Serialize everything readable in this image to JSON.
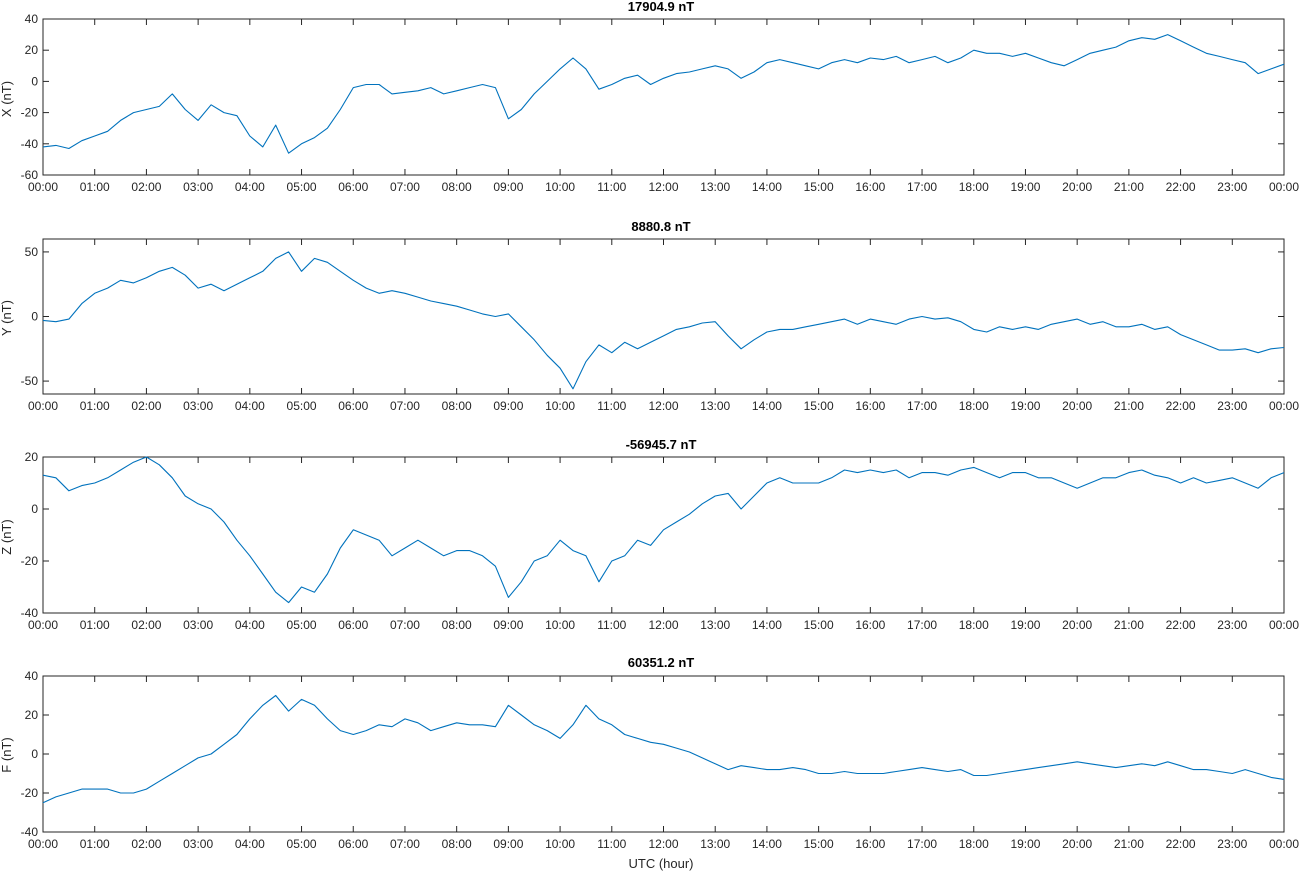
{
  "x_axis": {
    "ticks": [
      "00:00",
      "01:00",
      "02:00",
      "03:00",
      "04:00",
      "05:00",
      "06:00",
      "07:00",
      "08:00",
      "09:00",
      "10:00",
      "11:00",
      "12:00",
      "13:00",
      "14:00",
      "15:00",
      "16:00",
      "17:00",
      "18:00",
      "19:00",
      "20:00",
      "21:00",
      "22:00",
      "23:00",
      "00:00"
    ],
    "xlabel": "UTC (hour)"
  },
  "colors": {
    "series": "#0072BD",
    "axis": "#262626"
  },
  "chart_data": [
    {
      "type": "line",
      "title": "17904.9 nT",
      "ylabel": "X (nT)",
      "xlim": [
        0,
        24
      ],
      "ylim": [
        -60,
        40
      ],
      "yticks": [
        -60,
        -40,
        -20,
        0,
        20,
        40
      ],
      "grid": false,
      "x": [
        0,
        0.25,
        0.5,
        0.75,
        1,
        1.25,
        1.5,
        1.75,
        2,
        2.25,
        2.5,
        2.75,
        3,
        3.25,
        3.5,
        3.75,
        4,
        4.25,
        4.5,
        4.75,
        5,
        5.25,
        5.5,
        5.75,
        6,
        6.25,
        6.5,
        6.75,
        7,
        7.25,
        7.5,
        7.75,
        8,
        8.25,
        8.5,
        8.75,
        9,
        9.25,
        9.5,
        9.75,
        10,
        10.25,
        10.5,
        10.75,
        11,
        11.25,
        11.5,
        11.75,
        12,
        12.25,
        12.5,
        12.75,
        13,
        13.25,
        13.5,
        13.75,
        14,
        14.25,
        14.5,
        14.75,
        15,
        15.25,
        15.5,
        15.75,
        16,
        16.25,
        16.5,
        16.75,
        17,
        17.25,
        17.5,
        17.75,
        18,
        18.25,
        18.5,
        18.75,
        19,
        19.25,
        19.5,
        19.75,
        20,
        20.25,
        20.5,
        20.75,
        21,
        21.25,
        21.5,
        21.75,
        22,
        22.25,
        22.5,
        22.75,
        23,
        23.25,
        23.5,
        23.75,
        24
      ],
      "values": [
        -42,
        -41,
        -43,
        -38,
        -35,
        -32,
        -25,
        -20,
        -18,
        -16,
        -8,
        -18,
        -25,
        -15,
        -20,
        -22,
        -35,
        -42,
        -28,
        -46,
        -40,
        -36,
        -30,
        -18,
        -4,
        -2,
        -2,
        -8,
        -7,
        -6,
        -4,
        -8,
        -6,
        -4,
        -2,
        -4,
        -24,
        -18,
        -8,
        0,
        8,
        15,
        8,
        -5,
        -2,
        2,
        4,
        -2,
        2,
        5,
        6,
        8,
        10,
        8,
        2,
        6,
        12,
        14,
        12,
        10,
        8,
        12,
        14,
        12,
        15,
        14,
        16,
        12,
        14,
        16,
        12,
        15,
        20,
        18,
        18,
        16,
        18,
        15,
        12,
        10,
        14,
        18,
        20,
        22,
        26,
        28,
        27,
        30,
        26,
        22,
        18,
        16,
        14,
        12,
        5,
        8,
        11
      ]
    },
    {
      "type": "line",
      "title": "8880.8 nT",
      "ylabel": "Y (nT)",
      "xlim": [
        0,
        24
      ],
      "ylim": [
        -60,
        60
      ],
      "yticks": [
        -50,
        0,
        50
      ],
      "grid": false,
      "x": [
        0,
        0.25,
        0.5,
        0.75,
        1,
        1.25,
        1.5,
        1.75,
        2,
        2.25,
        2.5,
        2.75,
        3,
        3.25,
        3.5,
        3.75,
        4,
        4.25,
        4.5,
        4.75,
        5,
        5.25,
        5.5,
        5.75,
        6,
        6.25,
        6.5,
        6.75,
        7,
        7.25,
        7.5,
        7.75,
        8,
        8.25,
        8.5,
        8.75,
        9,
        9.25,
        9.5,
        9.75,
        10,
        10.25,
        10.5,
        10.75,
        11,
        11.25,
        11.5,
        11.75,
        12,
        12.25,
        12.5,
        12.75,
        13,
        13.25,
        13.5,
        13.75,
        14,
        14.25,
        14.5,
        14.75,
        15,
        15.25,
        15.5,
        15.75,
        16,
        16.25,
        16.5,
        16.75,
        17,
        17.25,
        17.5,
        17.75,
        18,
        18.25,
        18.5,
        18.75,
        19,
        19.25,
        19.5,
        19.75,
        20,
        20.25,
        20.5,
        20.75,
        21,
        21.25,
        21.5,
        21.75,
        22,
        22.25,
        22.5,
        22.75,
        23,
        23.25,
        23.5,
        23.75,
        24
      ],
      "values": [
        -3,
        -4,
        -2,
        10,
        18,
        22,
        28,
        26,
        30,
        35,
        38,
        32,
        22,
        25,
        20,
        25,
        30,
        35,
        45,
        50,
        35,
        45,
        42,
        35,
        28,
        22,
        18,
        20,
        18,
        15,
        12,
        10,
        8,
        5,
        2,
        0,
        2,
        -8,
        -18,
        -30,
        -40,
        -56,
        -35,
        -22,
        -28,
        -20,
        -25,
        -20,
        -15,
        -10,
        -8,
        -5,
        -4,
        -15,
        -25,
        -18,
        -12,
        -10,
        -10,
        -8,
        -6,
        -4,
        -2,
        -6,
        -2,
        -4,
        -6,
        -2,
        0,
        -2,
        -1,
        -4,
        -10,
        -12,
        -8,
        -10,
        -8,
        -10,
        -6,
        -4,
        -2,
        -6,
        -4,
        -8,
        -8,
        -6,
        -10,
        -8,
        -14,
        -18,
        -22,
        -26,
        -26,
        -25,
        -28,
        -25,
        -24
      ]
    },
    {
      "type": "line",
      "title": "-56945.7 nT",
      "ylabel": "Z (nT)",
      "xlim": [
        0,
        24
      ],
      "ylim": [
        -40,
        20
      ],
      "yticks": [
        -40,
        -20,
        0,
        20
      ],
      "grid": false,
      "x": [
        0,
        0.25,
        0.5,
        0.75,
        1,
        1.25,
        1.5,
        1.75,
        2,
        2.25,
        2.5,
        2.75,
        3,
        3.25,
        3.5,
        3.75,
        4,
        4.25,
        4.5,
        4.75,
        5,
        5.25,
        5.5,
        5.75,
        6,
        6.25,
        6.5,
        6.75,
        7,
        7.25,
        7.5,
        7.75,
        8,
        8.25,
        8.5,
        8.75,
        9,
        9.25,
        9.5,
        9.75,
        10,
        10.25,
        10.5,
        10.75,
        11,
        11.25,
        11.5,
        11.75,
        12,
        12.25,
        12.5,
        12.75,
        13,
        13.25,
        13.5,
        13.75,
        14,
        14.25,
        14.5,
        14.75,
        15,
        15.25,
        15.5,
        15.75,
        16,
        16.25,
        16.5,
        16.75,
        17,
        17.25,
        17.5,
        17.75,
        18,
        18.25,
        18.5,
        18.75,
        19,
        19.25,
        19.5,
        19.75,
        20,
        20.25,
        20.5,
        20.75,
        21,
        21.25,
        21.5,
        21.75,
        22,
        22.25,
        22.5,
        22.75,
        23,
        23.25,
        23.5,
        23.75,
        24
      ],
      "values": [
        13,
        12,
        7,
        9,
        10,
        12,
        15,
        18,
        20,
        17,
        12,
        5,
        2,
        0,
        -5,
        -12,
        -18,
        -25,
        -32,
        -36,
        -30,
        -32,
        -25,
        -15,
        -8,
        -10,
        -12,
        -18,
        -15,
        -12,
        -15,
        -18,
        -16,
        -16,
        -18,
        -22,
        -34,
        -28,
        -20,
        -18,
        -12,
        -16,
        -18,
        -28,
        -20,
        -18,
        -12,
        -14,
        -8,
        -5,
        -2,
        2,
        5,
        6,
        0,
        5,
        10,
        12,
        10,
        10,
        10,
        12,
        15,
        14,
        15,
        14,
        15,
        12,
        14,
        14,
        13,
        15,
        16,
        14,
        12,
        14,
        14,
        12,
        12,
        10,
        8,
        10,
        12,
        12,
        14,
        15,
        13,
        12,
        10,
        12,
        10,
        11,
        12,
        10,
        8,
        12,
        14
      ]
    },
    {
      "type": "line",
      "title": "60351.2 nT",
      "ylabel": "F (nT)",
      "xlim": [
        0,
        24
      ],
      "ylim": [
        -40,
        40
      ],
      "yticks": [
        -40,
        -20,
        0,
        20,
        40
      ],
      "grid": false,
      "x": [
        0,
        0.25,
        0.5,
        0.75,
        1,
        1.25,
        1.5,
        1.75,
        2,
        2.25,
        2.5,
        2.75,
        3,
        3.25,
        3.5,
        3.75,
        4,
        4.25,
        4.5,
        4.75,
        5,
        5.25,
        5.5,
        5.75,
        6,
        6.25,
        6.5,
        6.75,
        7,
        7.25,
        7.5,
        7.75,
        8,
        8.25,
        8.5,
        8.75,
        9,
        9.25,
        9.5,
        9.75,
        10,
        10.25,
        10.5,
        10.75,
        11,
        11.25,
        11.5,
        11.75,
        12,
        12.25,
        12.5,
        12.75,
        13,
        13.25,
        13.5,
        13.75,
        14,
        14.25,
        14.5,
        14.75,
        15,
        15.25,
        15.5,
        15.75,
        16,
        16.25,
        16.5,
        16.75,
        17,
        17.25,
        17.5,
        17.75,
        18,
        18.25,
        18.5,
        18.75,
        19,
        19.25,
        19.5,
        19.75,
        20,
        20.25,
        20.5,
        20.75,
        21,
        21.25,
        21.5,
        21.75,
        22,
        22.25,
        22.5,
        22.75,
        23,
        23.25,
        23.5,
        23.75,
        24
      ],
      "values": [
        -25,
        -22,
        -20,
        -18,
        -18,
        -18,
        -20,
        -20,
        -18,
        -14,
        -10,
        -6,
        -2,
        0,
        5,
        10,
        18,
        25,
        30,
        22,
        28,
        25,
        18,
        12,
        10,
        12,
        15,
        14,
        18,
        16,
        12,
        14,
        16,
        15,
        15,
        14,
        25,
        20,
        15,
        12,
        8,
        15,
        25,
        18,
        15,
        10,
        8,
        6,
        5,
        3,
        1,
        -2,
        -5,
        -8,
        -6,
        -7,
        -8,
        -8,
        -7,
        -8,
        -10,
        -10,
        -9,
        -10,
        -10,
        -10,
        -9,
        -8,
        -7,
        -8,
        -9,
        -8,
        -11,
        -11,
        -10,
        -9,
        -8,
        -7,
        -6,
        -5,
        -4,
        -5,
        -6,
        -7,
        -6,
        -5,
        -6,
        -4,
        -6,
        -8,
        -8,
        -9,
        -10,
        -8,
        -10,
        -12,
        -13
      ]
    }
  ]
}
